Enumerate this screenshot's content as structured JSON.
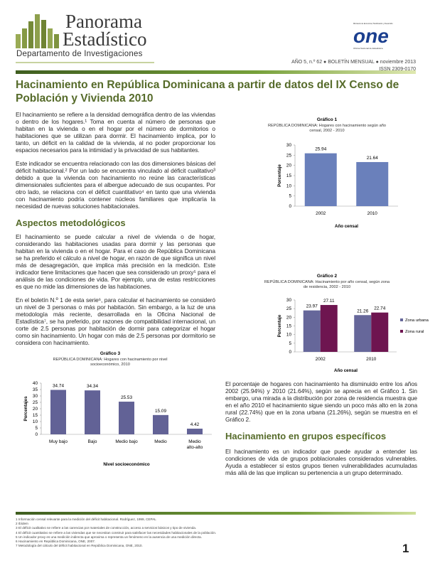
{
  "header": {
    "brand_line1": "Panorama",
    "brand_line2": "Estadístico",
    "department": "Departamento de Investigaciones",
    "issue": "AÑO 5, n.º 62 ● BOLETÍN MENSUAL ● noviembre 2013",
    "issn": "ISSN 2309-0170",
    "logo_text": "one",
    "logo_caption": "Oficina Nacional de Estadística",
    "logo_top": "Ministerio de Economía, Planificación y Desarrollo",
    "colors": {
      "green": "#566b2a",
      "bar_blue": "#6a80bb",
      "urban": "#66679a",
      "rural": "#6e1550"
    }
  },
  "title": "Hacinamiento en República Dominicana a partir de datos del IX Censo de Población y Vivienda 2010",
  "left": {
    "p1": "El hacinamiento se refiere a la densidad demográfica dentro de las viviendas o dentro de los hogares.¹ Toma en cuenta al número de personas que habitan en la vivienda o en el hogar por el número de dormitorios o habitaciones que se utilizan para dormir. El hacinamiento implica, por lo tanto, un déficit en la calidad de la vivienda, al no poder proporcionar los espacios necesarios para la intimidad y la privacidad de sus habitantes.",
    "p2": "Este indicador se encuentra relacionado con las dos dimensiones básicas del déficit habitacional.² Por un lado se encuentra vinculado al déficit cualitativo³ debido a que la vivienda con hacinamiento no reúne las características dimensionales suficientes para el albergue adecuado de sus ocupantes. Por otro lado, se relaciona con el déficit cuantitativo⁴ en tanto que una vivienda con hacinamiento podría contener núcleos familiares que implicaría la necesidad de nuevas soluciones habitacionales.",
    "h_method": "Aspectos metodológicos",
    "p3": "El hacinamiento se puede calcular a nivel de vivienda o de hogar, considerando las habitaciones usadas para dormir y las personas que habitan en la vivienda o en el hogar. Para el caso de República Dominicana se ha preferido el cálculo a nivel de hogar, en razón de que significa un nivel más de desagregación, que implica más precisión en la medición. Este indicador tiene limitaciones que hacen que sea considerado un proxy⁵ para el análisis de las condiciones de vida. Por ejemplo, una de estas restricciones es que no mide las dimensiones de las habitaciones.",
    "p4": "En el boletín N.º 1 de esta serie⁶, para calcular el hacinamiento se consideró un nivel de 3 personas o más por habitación. Sin embargo, a la luz de una metodología más reciente, desarrollada en la Oficina Nacional de Estadística⁷, se ha preferido, por razones de compatibilidad internacional, un corte de 2.5 personas por habitación de dormir para categorizar el hogar como sin hacinamiento. Un hogar con más de 2.5 personas por dormitorio se considera con hacinamiento."
  },
  "right": {
    "p1": "El porcentaje de hogares con hacinamiento ha disminuido entre los años 2002 (25.94%) y 2010 (21.64%), según se aprecia en el Gráfico 1. Sin embargo, una mirada a la distribución por zona de residencia muestra que en el año 2010 el hacinamiento sigue siendo un poco más alto en la zona rural (22.74%) que en la zona urbana (21.26%), según se muestra en el Gráfico 2.",
    "h_groups": "Hacinamiento en grupos específicos",
    "p2": "El hacinamiento es un indicador que puede ayudar a entender las condiciones de vida de grupos poblacionales considerados vulnerables. Ayuda a establecer si estos grupos tienen vulnerabilidades acumuladas más allá de las que implican su pertenencia a un grupo determinado."
  },
  "chart_data": [
    {
      "type": "bar",
      "label": "Gráfico 1",
      "title": "REPÚBLICA DOMINICANA: Hogares con hacinamiento según año censal, 2002 - 2010",
      "categories": [
        "2002",
        "2010"
      ],
      "values": [
        25.94,
        21.64
      ],
      "xlabel": "Año censal",
      "ylabel": "Porcentaje",
      "ylim": [
        0,
        30
      ],
      "yticks": [
        0,
        5,
        10,
        15,
        20,
        25,
        30
      ],
      "grid": false
    },
    {
      "type": "bar",
      "label": "Gráfico 2",
      "title": "REPÚBLICA DOMINICANA: Hacinamiento por año censal, según zona de residencia, 2002 - 2010",
      "categories": [
        "2002",
        "2010"
      ],
      "series": [
        {
          "name": "Zona urbana",
          "values": [
            23.97,
            21.26
          ]
        },
        {
          "name": "Zona rural",
          "values": [
            27.11,
            22.74
          ]
        }
      ],
      "xlabel": "Año censal",
      "ylabel": "Porcentaje",
      "ylim": [
        0,
        30
      ],
      "yticks": [
        0,
        5,
        10,
        15,
        20,
        25,
        30
      ],
      "legend": "right",
      "grid": false
    },
    {
      "type": "bar",
      "label": "Gráfico 3",
      "title": "REPÚBLICA DOMINICANA: Hogares con hacinamiento por nivel socioeconómico, 2010",
      "categories": [
        "Muy bajo",
        "Bajo",
        "Medio bajo",
        "Medio",
        "Medio alto-alto"
      ],
      "values": [
        34.74,
        34.34,
        25.53,
        15.09,
        4.42
      ],
      "xlabel": "Nivel socioeconómico",
      "ylabel": "Porcentajes",
      "ylim": [
        0,
        40
      ],
      "yticks": [
        0,
        5,
        10,
        15,
        20,
        25,
        30,
        35,
        40
      ],
      "grid": false
    }
  ],
  "footnotes": [
    "1 Información censal relevante para la medición del déficit habitacional. Rodríguez, 1999, CEPAL",
    "2 Ibídem",
    "3 El déficit cualitativo se refiere a las carencias por materiales de construcción, acceso a servicios básicos y tipo de vivienda.",
    "4 El déficit cuantitativo se refiere a las viviendas que se necesitan construir para satisfacer las necesidades habitacionales de la población.",
    "5 Un indicador proxy es una medición indirecta que aproxima o representa un fenómeno en la ausencia de una medición directa.",
    "6 Hacinamiento en República Dominicana, ONE, 2007.",
    "7 Metodología del cálculo del déficit habitacional en República Dominicana, ONE, 2010."
  ],
  "page_number": "1"
}
